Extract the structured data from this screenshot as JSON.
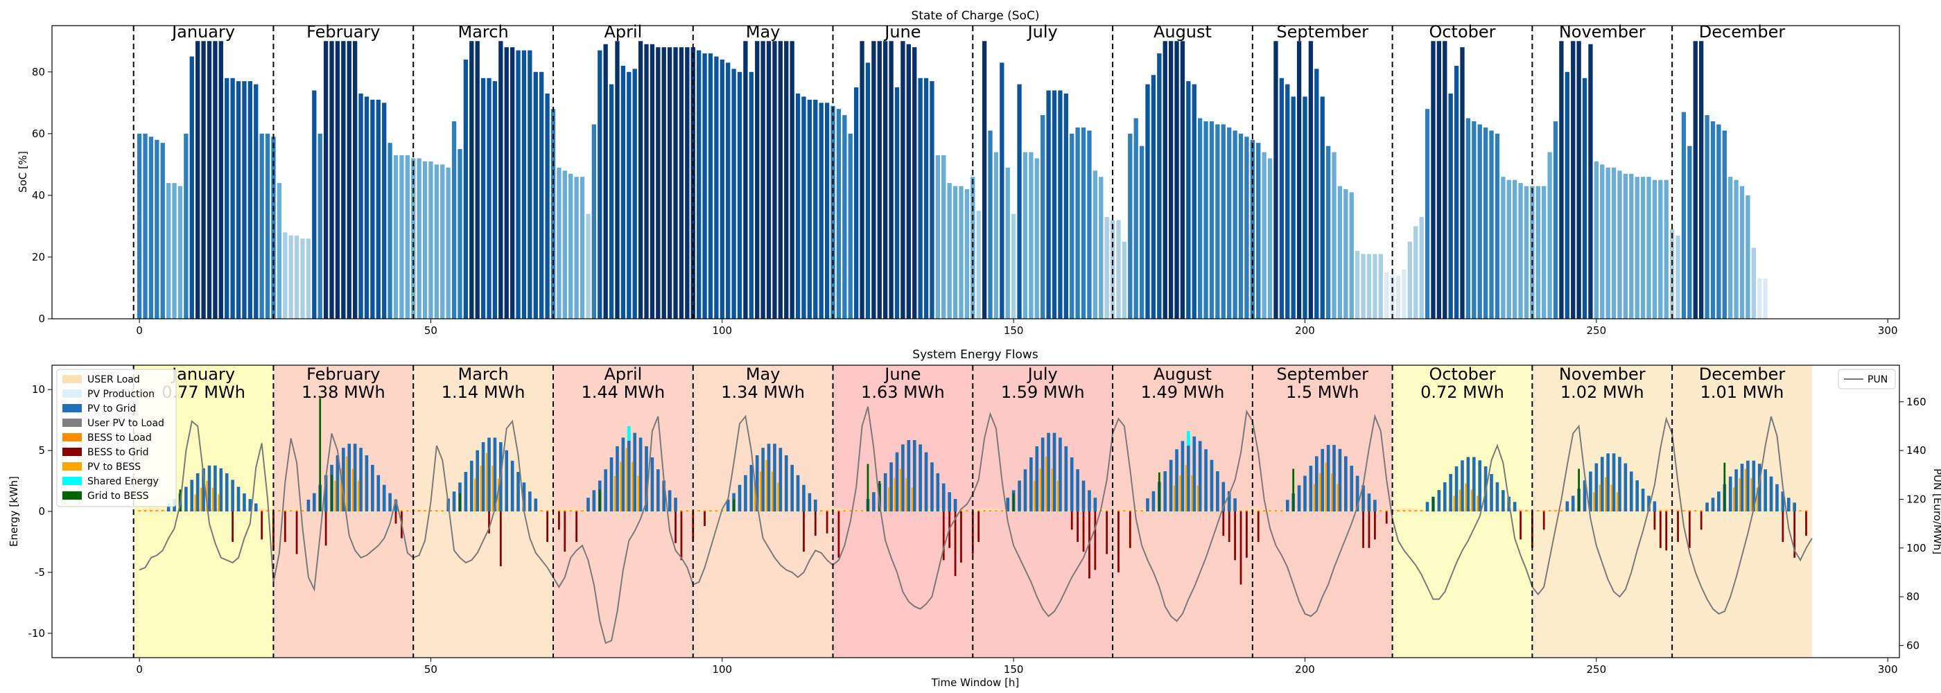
{
  "chart_data": [
    {
      "type": "bar",
      "title": "State of Charge (SoC)",
      "xlabel": "",
      "ylabel": "SoC [%]",
      "xlim": [
        -15,
        302
      ],
      "ylim": [
        0,
        95
      ],
      "xticks": [
        0,
        50,
        100,
        150,
        200,
        250,
        300
      ],
      "yticks": [
        0,
        20,
        40,
        60,
        80
      ],
      "month_boundaries": [
        -1,
        23,
        47,
        71,
        95,
        119,
        143,
        167,
        191,
        215,
        239,
        263
      ],
      "months": [
        "January",
        "February",
        "March",
        "April",
        "May",
        "June",
        "July",
        "August",
        "September",
        "October",
        "November",
        "December"
      ],
      "colormap": [
        "#dbe9f6",
        "#a9cfe5",
        "#6aaed6",
        "#2f7ebc",
        "#0b559f",
        "#08306b"
      ],
      "values": [
        60,
        60,
        59,
        58,
        57,
        44,
        44,
        43,
        60,
        85,
        90,
        90,
        90,
        90,
        90,
        78,
        78,
        77,
        77,
        77,
        76,
        60,
        60,
        59,
        44,
        28,
        27,
        27,
        26,
        26,
        74,
        60,
        90,
        90,
        90,
        90,
        90,
        90,
        73,
        72,
        71,
        71,
        70,
        57,
        53,
        53,
        53,
        52,
        52,
        51,
        51,
        50,
        50,
        49,
        64,
        55,
        84,
        90,
        90,
        78,
        78,
        77,
        90,
        88,
        88,
        87,
        87,
        87,
        80,
        80,
        73,
        68,
        49,
        48,
        47,
        46,
        46,
        34,
        63,
        87,
        89,
        76,
        90,
        82,
        80,
        81,
        90,
        89,
        89,
        88,
        88,
        88,
        88,
        88,
        88,
        88,
        87,
        86,
        86,
        85,
        84,
        83,
        81,
        80,
        90,
        80,
        90,
        90,
        90,
        90,
        90,
        90,
        90,
        73,
        72,
        71,
        71,
        70,
        70,
        69,
        68,
        66,
        60,
        75,
        90,
        83,
        90,
        90,
        90,
        90,
        75,
        90,
        89,
        88,
        78,
        78,
        77,
        53,
        53,
        44,
        43,
        43,
        42,
        46,
        35,
        90,
        61,
        54,
        83,
        49,
        34,
        76,
        54,
        54,
        52,
        66,
        74,
        74,
        74,
        73,
        60,
        62,
        62,
        61,
        48,
        46,
        33,
        32,
        32,
        25,
        60,
        65,
        56,
        76,
        79,
        86,
        90,
        90,
        90,
        90,
        77,
        76,
        65,
        64,
        64,
        63,
        63,
        62,
        61,
        60,
        59,
        58,
        57,
        54,
        52,
        90,
        78,
        76,
        72,
        90,
        72,
        90,
        81,
        72,
        56,
        54,
        43,
        42,
        41,
        22,
        21,
        21,
        21,
        21,
        15,
        14,
        14,
        16,
        25,
        30,
        33,
        68,
        90,
        90,
        90,
        73,
        82,
        88,
        65,
        64,
        63,
        62,
        61,
        60,
        46,
        45,
        45,
        44,
        43,
        43,
        43,
        43,
        54,
        64,
        90,
        80,
        90,
        90,
        78,
        89,
        51,
        50,
        49,
        49,
        48,
        47,
        47,
        46,
        46,
        46,
        45,
        45,
        45,
        29,
        27,
        67,
        56,
        90,
        90,
        66,
        64,
        63,
        61,
        46,
        45,
        43,
        40,
        23,
        13,
        13
      ]
    },
    {
      "type": "bar+line",
      "title": "System Energy Flows",
      "xlabel": "Time Window [h]",
      "ylabel": "Energy [kWh]",
      "ylabel_right": "PUN [Euro/MWh]",
      "xlim": [
        -15,
        302
      ],
      "ylim": [
        -12,
        12
      ],
      "ylim_right": [
        55,
        175
      ],
      "xticks": [
        0,
        50,
        100,
        150,
        200,
        250,
        300
      ],
      "yticks": [
        -10,
        -5,
        0,
        5,
        10
      ],
      "yticks_right": [
        60,
        80,
        100,
        120,
        140,
        160
      ],
      "month_boundaries": [
        -1,
        23,
        47,
        71,
        95,
        119,
        143,
        167,
        191,
        215,
        239,
        263
      ],
      "month_end": 287,
      "months": [
        {
          "name": "January",
          "energy": "0.77 MWh",
          "shade": "#fdfbc0"
        },
        {
          "name": "February",
          "energy": "1.38 MWh",
          "shade": "#fdd6c8"
        },
        {
          "name": "March",
          "energy": "1.14 MWh",
          "shade": "#fde6c9"
        },
        {
          "name": "April",
          "energy": "1.44 MWh",
          "shade": "#fdd2c7"
        },
        {
          "name": "May",
          "energy": "1.34 MWh",
          "shade": "#fddcc9"
        },
        {
          "name": "June",
          "energy": "1.63 MWh",
          "shade": "#fcc7c4"
        },
        {
          "name": "July",
          "energy": "1.59 MWh",
          "shade": "#fcc9c5"
        },
        {
          "name": "August",
          "energy": "1.49 MWh",
          "shade": "#fdd0c6"
        },
        {
          "name": "September",
          "energy": "1.5 MWh",
          "shade": "#fdd0c6"
        },
        {
          "name": "October",
          "energy": "0.72 MWh",
          "shade": "#fdfcc4"
        },
        {
          "name": "November",
          "energy": "1.02 MWh",
          "shade": "#fdeccc"
        },
        {
          "name": "December",
          "energy": "1.01 MWh",
          "shade": "#fdeacb"
        }
      ],
      "legend": [
        {
          "label": "USER Load",
          "color": "#fde0b3"
        },
        {
          "label": "PV Production",
          "color": "#dff0fb"
        },
        {
          "label": "PV to Grid",
          "color": "#1f6fb7"
        },
        {
          "label": "User PV to Load",
          "color": "#808080"
        },
        {
          "label": "BESS to Load",
          "color": "#ff8c00"
        },
        {
          "label": "BESS to Grid",
          "color": "#8b0000"
        },
        {
          "label": "PV to BESS",
          "color": "#ffa500"
        },
        {
          "label": "Shared Energy",
          "color": "#00ffff"
        },
        {
          "label": "Grid to BESS",
          "color": "#006400"
        }
      ],
      "legend_right": [
        {
          "label": "PUN",
          "color": "#7a7a7a"
        }
      ],
      "series_note": "PV to Grid positive daytime bell (peak ~4-6.5 kWh), BESS to Grid negative (down to ~-6 kWh), user load ~0.2 kWh near zero",
      "pv_peak": [
        3.8,
        5.6,
        6.1,
        6.5,
        5.6,
        5.9,
        6.5,
        6.2,
        5.5,
        4.5,
        4.8,
        4.2
      ],
      "pv_to_bess": [
        {
          "x": 10,
          "v": 2.5
        },
        {
          "x": 34,
          "v": 4.5
        },
        {
          "x": 58,
          "v": 4.8
        },
        {
          "x": 82,
          "v": 5.2
        },
        {
          "x": 106,
          "v": 4.2
        },
        {
          "x": 129,
          "v": 3.5
        },
        {
          "x": 154,
          "v": 4.5
        },
        {
          "x": 178,
          "v": 3.8
        },
        {
          "x": 202,
          "v": 4.0
        },
        {
          "x": 226,
          "v": 2.3
        },
        {
          "x": 250,
          "v": 2.8
        },
        {
          "x": 274,
          "v": 3.5
        }
      ],
      "grid_to_bess": [
        {
          "x": 7,
          "v": 1.8
        },
        {
          "x": 31,
          "v": 9.3
        },
        {
          "x": 33,
          "v": 3.0
        },
        {
          "x": 55,
          "v": 1.5
        },
        {
          "x": 79,
          "v": 1.8
        },
        {
          "x": 102,
          "v": 1.0
        },
        {
          "x": 125,
          "v": 3.9
        },
        {
          "x": 127,
          "v": 2.5
        },
        {
          "x": 150,
          "v": 1.5
        },
        {
          "x": 175,
          "v": 3.2
        },
        {
          "x": 198,
          "v": 3.5
        },
        {
          "x": 222,
          "v": 1.2
        },
        {
          "x": 247,
          "v": 3.5
        },
        {
          "x": 272,
          "v": 4.0
        }
      ],
      "shared_energy": [
        {
          "x": 84,
          "v": 7.0
        },
        {
          "x": 180,
          "v": 6.6
        }
      ],
      "bess_to_grid": [
        {
          "x": 16,
          "v": -2.5
        },
        {
          "x": 21,
          "v": -2.3
        },
        {
          "x": 23,
          "v": -3.2
        },
        {
          "x": 25,
          "v": -2.5
        },
        {
          "x": 27,
          "v": -3.5
        },
        {
          "x": 32,
          "v": -2.8
        },
        {
          "x": 44,
          "v": -1.0
        },
        {
          "x": 45,
          "v": -2.2
        },
        {
          "x": 60,
          "v": -1.8
        },
        {
          "x": 62,
          "v": -4.5
        },
        {
          "x": 70,
          "v": -2.5
        },
        {
          "x": 72,
          "v": -1.5
        },
        {
          "x": 73,
          "v": -3.3
        },
        {
          "x": 75,
          "v": -2.5
        },
        {
          "x": 92,
          "v": -2.6
        },
        {
          "x": 93,
          "v": -4.0
        },
        {
          "x": 95,
          "v": -2.5
        },
        {
          "x": 97,
          "v": -1.2
        },
        {
          "x": 114,
          "v": -3.3
        },
        {
          "x": 116,
          "v": -2.0
        },
        {
          "x": 118,
          "v": -1.8
        },
        {
          "x": 120,
          "v": -3.8
        },
        {
          "x": 138,
          "v": -4.0
        },
        {
          "x": 139,
          "v": -3.0
        },
        {
          "x": 140,
          "v": -5.3
        },
        {
          "x": 141,
          "v": -4.2
        },
        {
          "x": 143,
          "v": -3.5
        },
        {
          "x": 144,
          "v": -2.5
        },
        {
          "x": 160,
          "v": -1.5
        },
        {
          "x": 161,
          "v": -2.5
        },
        {
          "x": 162,
          "v": -3.3
        },
        {
          "x": 163,
          "v": -5.5
        },
        {
          "x": 164,
          "v": -4.8
        },
        {
          "x": 166,
          "v": -3.5
        },
        {
          "x": 168,
          "v": -5.0
        },
        {
          "x": 170,
          "v": -3.0
        },
        {
          "x": 186,
          "v": -2.0
        },
        {
          "x": 187,
          "v": -2.5
        },
        {
          "x": 188,
          "v": -4.0
        },
        {
          "x": 189,
          "v": -6.0
        },
        {
          "x": 190,
          "v": -3.8
        },
        {
          "x": 192,
          "v": -2.5
        },
        {
          "x": 210,
          "v": -3.0
        },
        {
          "x": 211,
          "v": -3.0
        },
        {
          "x": 212,
          "v": -2.3
        },
        {
          "x": 214,
          "v": -1.0
        },
        {
          "x": 237,
          "v": -2.3
        },
        {
          "x": 239,
          "v": -3.0
        },
        {
          "x": 241,
          "v": -1.5
        },
        {
          "x": 260,
          "v": -1.5
        },
        {
          "x": 261,
          "v": -3.0
        },
        {
          "x": 262,
          "v": -3.2
        },
        {
          "x": 264,
          "v": -2.5
        },
        {
          "x": 266,
          "v": -3.0
        },
        {
          "x": 268,
          "v": -1.5
        },
        {
          "x": 282,
          "v": -2.5
        },
        {
          "x": 284,
          "v": -3.8
        },
        {
          "x": 286,
          "v": -2.0
        }
      ],
      "pun": [
        91,
        92,
        96,
        97,
        99,
        104,
        108,
        118,
        140,
        152,
        150,
        130,
        110,
        102,
        96,
        95,
        94,
        96,
        104,
        110,
        133,
        143,
        120,
        86,
        98,
        127,
        145,
        135,
        108,
        88,
        83,
        105,
        129,
        147,
        140,
        122,
        105,
        99,
        96,
        97,
        99,
        101,
        104,
        110,
        120,
        110,
        98,
        96,
        97,
        103,
        119,
        142,
        136,
        118,
        99,
        96,
        94,
        95,
        98,
        103,
        108,
        116,
        129,
        149,
        152,
        138,
        115,
        104,
        98,
        95,
        92,
        88,
        84,
        88,
        96,
        99,
        101,
        95,
        85,
        70,
        61,
        62,
        74,
        91,
        103,
        107,
        112,
        119,
        148,
        154,
        128,
        107,
        99,
        96,
        92,
        85,
        86,
        92,
        100,
        108,
        116,
        120,
        135,
        151,
        154,
        140,
        118,
        104,
        100,
        96,
        93,
        91,
        90,
        88,
        90,
        95,
        99,
        98,
        95,
        93,
        95,
        101,
        111,
        125,
        150,
        158,
        141,
        118,
        103,
        96,
        90,
        82,
        78,
        76,
        75,
        77,
        80,
        90,
        100,
        108,
        112,
        116,
        118,
        122,
        128,
        145,
        155,
        149,
        128,
        111,
        101,
        96,
        91,
        86,
        80,
        75,
        72,
        74,
        78,
        83,
        88,
        92,
        96,
        102,
        108,
        116,
        128,
        147,
        153,
        150,
        132,
        112,
        101,
        95,
        90,
        84,
        76,
        72,
        70,
        73,
        79,
        84,
        90,
        96,
        103,
        110,
        117,
        122,
        128,
        139,
        156,
        152,
        139,
        120,
        108,
        101,
        97,
        92,
        85,
        78,
        73,
        72,
        74,
        80,
        85,
        92,
        98,
        104,
        110,
        117,
        126,
        141,
        154,
        148,
        128,
        112,
        103,
        99,
        96,
        93,
        89,
        84,
        79,
        79,
        82,
        88,
        94,
        99,
        103,
        108,
        113,
        123,
        136,
        142,
        135,
        119,
        104,
        97,
        91,
        84,
        81,
        84,
        96,
        108,
        120,
        134,
        147,
        150,
        130,
        112,
        101,
        94,
        87,
        82,
        80,
        83,
        90,
        99,
        107,
        116,
        126,
        141,
        153,
        147,
        127,
        109,
        98,
        90,
        84,
        79,
        75,
        73,
        74,
        80,
        88,
        97,
        106,
        116,
        127,
        142,
        154,
        146,
        125,
        108,
        99,
        95,
        100,
        104
      ],
      "pun_color": "#7a7a7a"
    }
  ]
}
